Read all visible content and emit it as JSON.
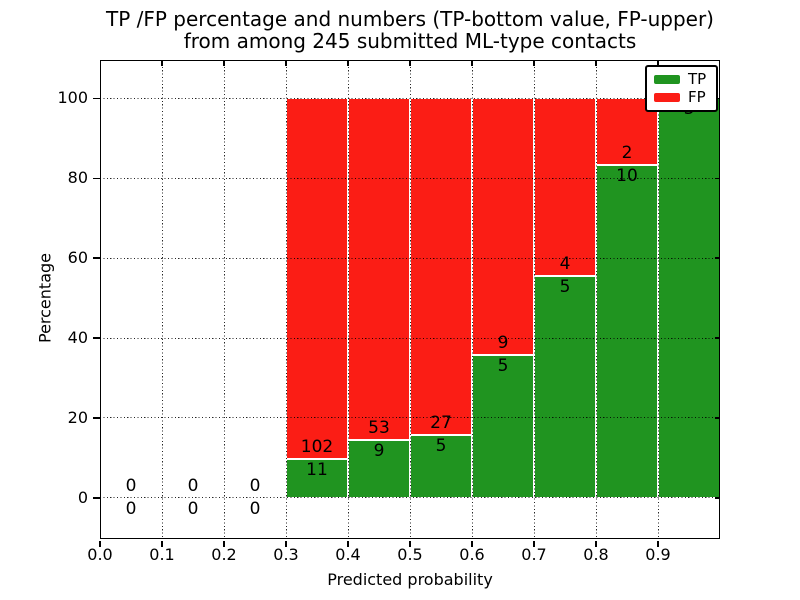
{
  "title": {
    "line1": "TP /FP percentage and numbers (TP-bottom value, FP-upper)",
    "line2": "from among 245 submitted ML-type contacts"
  },
  "axes": {
    "xlabel": "Predicted probability",
    "ylabel": "Percentage",
    "xtick_labels": [
      "0.0",
      "0.1",
      "0.2",
      "0.3",
      "0.4",
      "0.5",
      "0.6",
      "0.7",
      "0.8",
      "0.9"
    ],
    "ytick_labels": [
      "0",
      "20",
      "40",
      "60",
      "80",
      "100"
    ]
  },
  "legend": {
    "items": [
      {
        "label": "TP",
        "color": "#209420"
      },
      {
        "label": "FP",
        "color": "#fb1d15"
      }
    ],
    "position": "upper right"
  },
  "colors": {
    "tp_green": "#209420",
    "fp_red": "#fb1d15",
    "grid": "#000000",
    "background": "#ffffff",
    "text": "#000000"
  },
  "chart_data": {
    "type": "bar",
    "stacked": true,
    "normalized_to_percent": 100,
    "title": "TP /FP percentage and numbers (TP-bottom value, FP-upper) from among 245 submitted ML-type contacts",
    "xlabel": "Predicted probability",
    "ylabel": "Percentage",
    "total_contacts": 245,
    "series_names": [
      "TP",
      "FP"
    ],
    "bins": [
      {
        "range": [
          0.0,
          0.1
        ],
        "tp": 0,
        "fp": 0
      },
      {
        "range": [
          0.1,
          0.2
        ],
        "tp": 0,
        "fp": 0
      },
      {
        "range": [
          0.2,
          0.3
        ],
        "tp": 0,
        "fp": 0
      },
      {
        "range": [
          0.3,
          0.4
        ],
        "tp": 11,
        "fp": 102
      },
      {
        "range": [
          0.4,
          0.5
        ],
        "tp": 9,
        "fp": 53
      },
      {
        "range": [
          0.5,
          0.6
        ],
        "tp": 5,
        "fp": 27
      },
      {
        "range": [
          0.6,
          0.7
        ],
        "tp": 5,
        "fp": 9
      },
      {
        "range": [
          0.7,
          0.8
        ],
        "tp": 5,
        "fp": 4
      },
      {
        "range": [
          0.8,
          0.9
        ],
        "tp": 10,
        "fp": 2
      },
      {
        "range": [
          0.9,
          1.0
        ],
        "tp": 3,
        "fp": 0
      }
    ],
    "xticks": [
      0.0,
      0.1,
      0.2,
      0.3,
      0.4,
      0.5,
      0.6,
      0.7,
      0.8,
      0.9
    ],
    "yticks": [
      0,
      20,
      40,
      60,
      80,
      100
    ],
    "xlim": [
      0.0,
      1.0
    ],
    "ylim": [
      -10.3,
      109.6
    ],
    "grid": true,
    "legend_position": "upper right"
  }
}
